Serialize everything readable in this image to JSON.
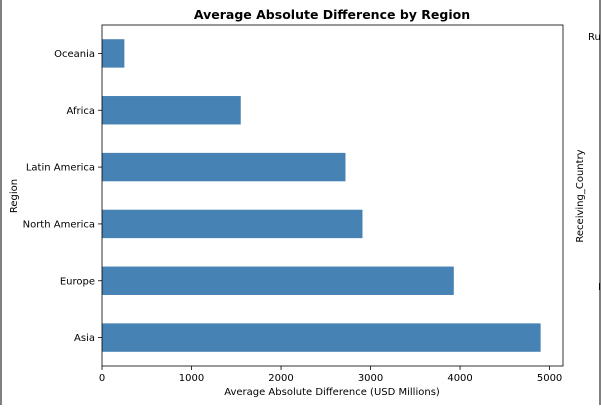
{
  "chart_data": {
    "type": "bar",
    "orientation": "horizontal",
    "title": "Average Absolute Difference by Region",
    "xlabel": "Average Absolute Difference (USD Millions)",
    "ylabel": "Region",
    "categories": [
      "Asia",
      "Europe",
      "North America",
      "Latin America",
      "Africa",
      "Oceania"
    ],
    "values": [
      4900,
      3930,
      2910,
      2720,
      1550,
      250
    ],
    "xlim": [
      0,
      5150
    ],
    "xticks": [
      0,
      1000,
      2000,
      3000,
      4000,
      5000
    ],
    "bar_color": "#4682b4",
    "grid": false,
    "legend": false
  },
  "side_panel": {
    "ylabel": "Receiving_Country",
    "partial_text_top": "Ru",
    "partial_text_bottom": "I"
  }
}
